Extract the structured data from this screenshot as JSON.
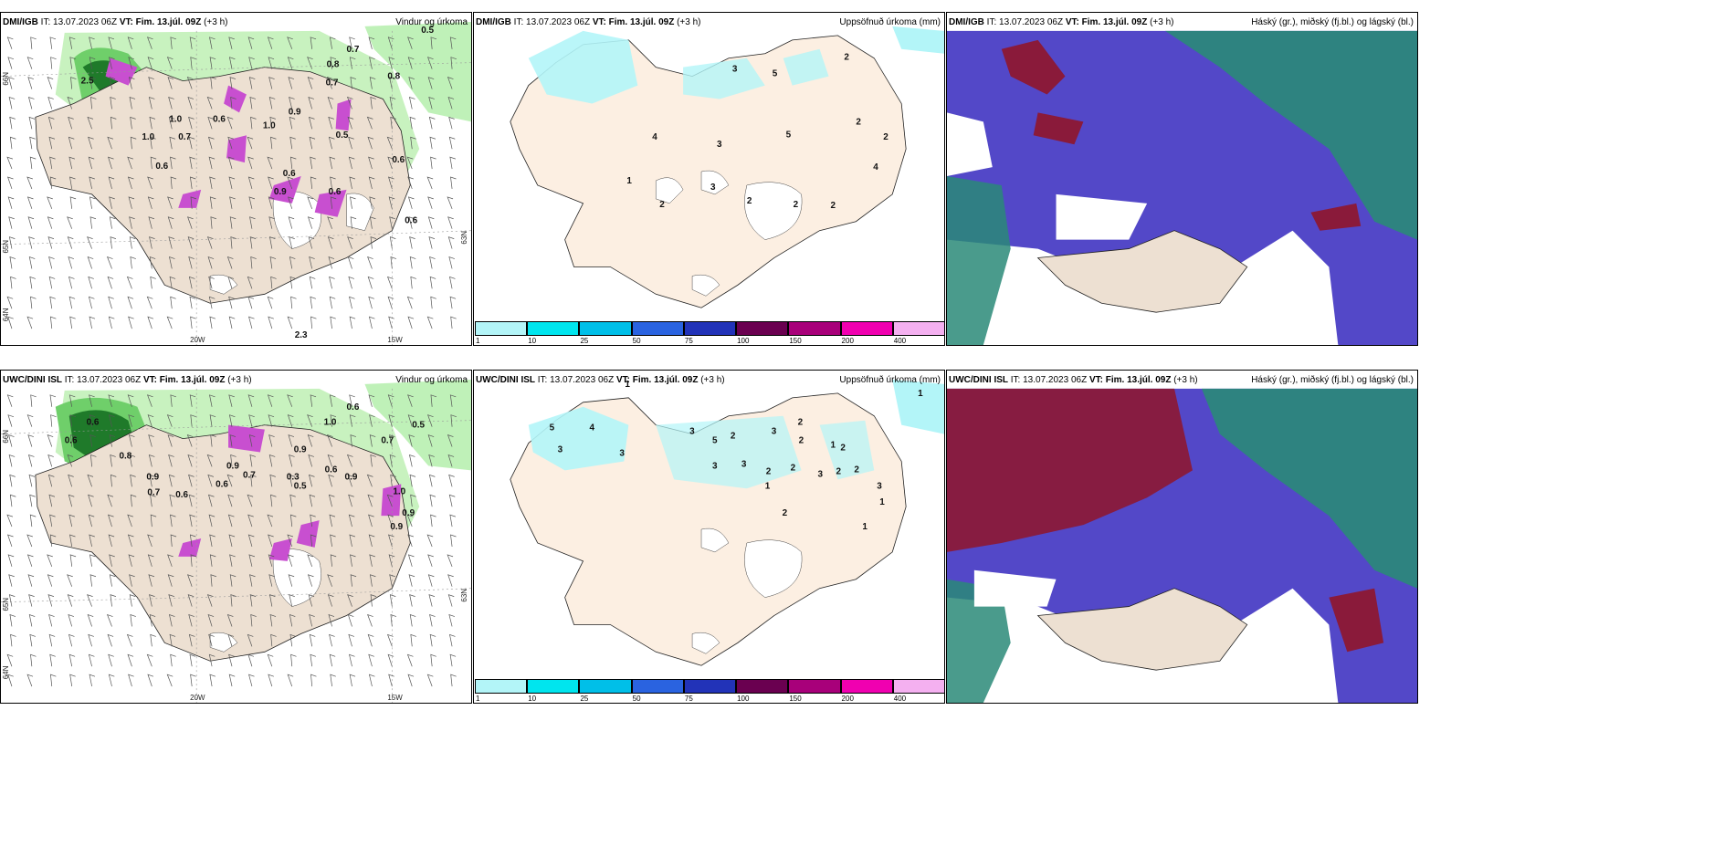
{
  "panels": [
    {
      "source": "DMI/IGB",
      "it": " IT: 13.07.2023 06Z ",
      "vt_label": "VT: Fim. 13.júl. 09Z",
      "vt_suffix": " (+3 h)",
      "title": "Vindur og úrkoma",
      "lat_labels": [
        "66N",
        "65N",
        "64N",
        "63N"
      ],
      "lon_labels": [
        "20W",
        "15W"
      ],
      "values": [
        "0.5",
        "0.7",
        "0.8",
        "0.8",
        "2.5",
        "0.7",
        "1.0",
        "0.6",
        "1.0",
        "0.9",
        "1.0",
        "0.7",
        "0.5",
        "0.6",
        "0.6",
        "0.6",
        "0.9",
        "0.6",
        "0.6",
        "2.3"
      ]
    },
    {
      "source": "DMI/IGB",
      "it": " IT: 13.07.2023 06Z ",
      "vt_label": "VT: Fim. 13.júl. 09Z",
      "vt_suffix": " (+3 h)",
      "title": "Uppsöfnuð úrkoma (mm)",
      "values": [
        "2",
        "3",
        "5",
        "4",
        "3",
        "5",
        "2",
        "2",
        "1",
        "2",
        "3",
        "2",
        "2",
        "4",
        "2"
      ]
    },
    {
      "source": "DMI/IGB",
      "it": " IT: 13.07.2023 06Z ",
      "vt_label": "VT: Fim. 13.júl. 09Z",
      "vt_suffix": " (+3 h)",
      "title": "Háský (gr.), miðský (fj.bl.) og lágský (bl.)"
    },
    {
      "source": "UWC/DINI ISL",
      "it": " IT: 13.07.2023 06Z ",
      "vt_label": "VT: Fim. 13.júl. 09Z",
      "vt_suffix": " (+3 h)",
      "title": "Vindur og úrkoma",
      "lat_labels": [
        "66N",
        "65N",
        "64N",
        "63N"
      ],
      "lon_labels": [
        "20W",
        "15W"
      ],
      "values": [
        "0.6",
        "0.6",
        "0.5",
        "0.6",
        "0.8",
        "0.9",
        "0.7",
        "0.6",
        "0.9",
        "0.7",
        "0.6",
        "1.0",
        "0.9",
        "0.3",
        "0.6",
        "0.5",
        "0.9",
        "0.7",
        "1.0",
        "0.9",
        "0.9"
      ]
    },
    {
      "source": "UWC/DINI ISL",
      "it": " IT: 13.07.2023 06Z ",
      "vt_label": "VT: Fim. 13.júl. 09Z",
      "vt_suffix": " (+3 h)",
      "title": "Uppsöfnuð úrkoma (mm)",
      "values": [
        "1",
        "1",
        "5",
        "4",
        "3",
        "3",
        "3",
        "5",
        "2",
        "3",
        "2",
        "2",
        "1",
        "2",
        "3",
        "3",
        "2",
        "2",
        "3",
        "2",
        "2",
        "3",
        "1",
        "1",
        "2",
        "1"
      ]
    },
    {
      "source": "UWC/DINI ISL",
      "it": " IT: 13.07.2023 06Z ",
      "vt_label": "VT: Fim. 13.júl. 09Z",
      "vt_suffix": " (+3 h)",
      "title": "Háský (gr.), miðský (fj.bl.) og lágský (bl.)"
    }
  ],
  "colorbar": {
    "labels": [
      "1",
      "10",
      "25",
      "50",
      "75",
      "100",
      "150",
      "200",
      "400"
    ],
    "colors": [
      "#b3f5f8",
      "#00e5ee",
      "#00bfe8",
      "#2a63e0",
      "#2233b8",
      "#6a0050",
      "#a8007a",
      "#f000b0",
      "#f4b0f0"
    ]
  },
  "colors": {
    "land": "#ede0d2",
    "glacier": "#ffffff",
    "precip_light": "#b8f0b0",
    "precip_mid": "#6fcf6a",
    "precip_heavy": "#1f7a2a",
    "convective": "#c84fd0",
    "cloud_high": "#2a8a78",
    "cloud_mid": "#5348c8",
    "cloud_low": "#8a1a3a",
    "rain_light": "#b3f5f8"
  }
}
